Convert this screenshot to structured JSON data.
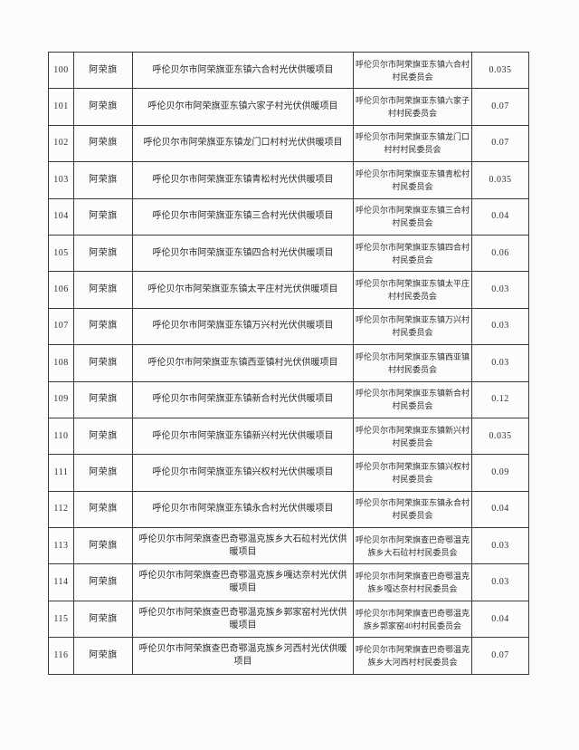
{
  "colors": {
    "page_background": "#fbfbfa",
    "table_border": "#3a3a3a",
    "text": "#2d2d2d"
  },
  "table": {
    "rows": [
      {
        "no": "100",
        "banner": "阿荣旗",
        "project": "呼伦贝尔市阿荣旗亚东镇六合村光伏供暖项目",
        "owner": "呼伦贝尔市阿荣旗亚东镇六合村村民委员会",
        "value": "0.035"
      },
      {
        "no": "101",
        "banner": "阿荣旗",
        "project": "呼伦贝尔市阿荣旗亚东镇六家子村光伏供暖项目",
        "owner": "呼伦贝尔市阿荣旗亚东镇六家子村村民委员会",
        "value": "0.07"
      },
      {
        "no": "102",
        "banner": "阿荣旗",
        "project": "呼伦贝尔市阿荣旗亚东镇龙门口村村光伏供暖项目",
        "owner": "呼伦贝尔市阿荣旗亚东镇龙门口村村村民委员会",
        "value": "0.07"
      },
      {
        "no": "103",
        "banner": "阿荣旗",
        "project": "呼伦贝尔市阿荣旗亚东镇青松村光伏供暖项目",
        "owner": "呼伦贝尔市阿荣旗亚东镇青松村村民委员会",
        "value": "0.035"
      },
      {
        "no": "104",
        "banner": "阿荣旗",
        "project": "呼伦贝尔市阿荣旗亚东镇三合村光伏供暖项目",
        "owner": "呼伦贝尔市阿荣旗亚东镇三合村村民委员会",
        "value": "0.04"
      },
      {
        "no": "105",
        "banner": "阿荣旗",
        "project": "呼伦贝尔市阿荣旗亚东镇四合村光伏供暖项目",
        "owner": "呼伦贝尔市阿荣旗亚东镇四合村村民委员会",
        "value": "0.06"
      },
      {
        "no": "106",
        "banner": "阿荣旗",
        "project": "呼伦贝尔市阿荣旗亚东镇太平庄村光伏供暖项目",
        "owner": "呼伦贝尔市阿荣旗亚东镇太平庄村村民委员会",
        "value": "0.03"
      },
      {
        "no": "107",
        "banner": "阿荣旗",
        "project": "呼伦贝尔市阿荣旗亚东镇万兴村光伏供暖项目",
        "owner": "呼伦贝尔市阿荣旗亚东镇万兴村村民委员会",
        "value": "0.03"
      },
      {
        "no": "108",
        "banner": "阿荣旗",
        "project": "呼伦贝尔市阿荣旗亚东镇西亚镇村光伏供暖项目",
        "owner": "呼伦贝尔市阿荣旗亚东镇西亚镇村村民委员会",
        "value": "0.03"
      },
      {
        "no": "109",
        "banner": "阿荣旗",
        "project": "呼伦贝尔市阿荣旗亚东镇新合村光伏供暖项目",
        "owner": "呼伦贝尔市阿荣旗亚东镇新合村村民委员会",
        "value": "0.12"
      },
      {
        "no": "110",
        "banner": "阿荣旗",
        "project": "呼伦贝尔市阿荣旗亚东镇新兴村光伏供暖项目",
        "owner": "呼伦贝尔市阿荣旗亚东镇新兴村村民委员会",
        "value": "0.035"
      },
      {
        "no": "111",
        "banner": "阿荣旗",
        "project": "呼伦贝尔市阿荣旗亚东镇兴权村光伏供暖项目",
        "owner": "呼伦贝尔市阿荣旗亚东镇兴权村村民委员会",
        "value": "0.09"
      },
      {
        "no": "112",
        "banner": "阿荣旗",
        "project": "呼伦贝尔市阿荣旗亚东镇永合村光伏供暖项目",
        "owner": "呼伦贝尔市阿荣旗亚东镇永合村村民委员会",
        "value": "0.04"
      },
      {
        "no": "113",
        "banner": "阿荣旗",
        "project": "呼伦贝尔市阿荣旗查巴奇鄂温克族乡大石砬村光伏供暖项目",
        "owner": "呼伦贝尔市阿荣旗查巴奇鄂温克族乡大石砬村村民委员会",
        "value": "0.03"
      },
      {
        "no": "114",
        "banner": "阿荣旗",
        "project": "呼伦贝尔市阿荣旗查巴奇鄂温克族乡嘎达奈村光伏供暖项目",
        "owner": "呼伦贝尔市阿荣旗查巴奇鄂温克族乡嘎达奈村村民委员会",
        "value": "0.03"
      },
      {
        "no": "115",
        "banner": "阿荣旗",
        "project": "呼伦贝尔市阿荣旗查巴奇鄂温克族乡郭家窑村光伏供暖项目",
        "owner": "呼伦贝尔市阿荣旗查巴奇鄂温克族乡郭家窑40村村民委员会",
        "value": "0.04"
      },
      {
        "no": "116",
        "banner": "阿荣旗",
        "project": "呼伦贝尔市阿荣旗查巴奇鄂温克族乡河西村光伏供暖项目",
        "owner": "呼伦贝尔市阿荣旗查巴奇鄂温克族乡大河西村村民委员会",
        "value": "0.07"
      }
    ]
  }
}
